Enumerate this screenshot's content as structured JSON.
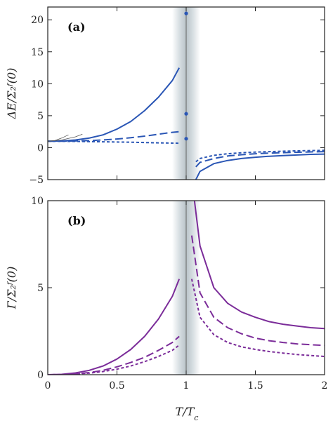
{
  "chart_data": [
    {
      "type": "line",
      "panel_label": "(a)",
      "xlabel": "",
      "ylabel": "ΔE/Σ₂ᶠ(0)",
      "xlim": [
        0,
        2
      ],
      "ylim": [
        -5,
        22
      ],
      "xticks": [
        0,
        0.5,
        1,
        1.5,
        2
      ],
      "xtick_labels": [
        "",
        "",
        "",
        "",
        ""
      ],
      "yticks": [
        -5,
        0,
        5,
        10,
        15,
        20
      ],
      "ytick_labels": [
        "−5",
        "0",
        "5",
        "10",
        "15",
        "20"
      ],
      "critical_x": 1,
      "color": "#2a56b5",
      "series": [
        {
          "style": "solid",
          "segments": [
            {
              "x": [
                0,
                0.1,
                0.2,
                0.3,
                0.4,
                0.5,
                0.6,
                0.7,
                0.8,
                0.9,
                0.95
              ],
              "y": [
                1,
                1.05,
                1.2,
                1.5,
                2.0,
                2.9,
                4.1,
                5.8,
                7.9,
                10.5,
                12.5
              ]
            },
            {
              "x": [
                1.07,
                1.1,
                1.2,
                1.3,
                1.4,
                1.5,
                1.6,
                1.7,
                1.8,
                1.9,
                2.0
              ],
              "y": [
                -5,
                -3.7,
                -2.5,
                -2.0,
                -1.7,
                -1.5,
                -1.35,
                -1.25,
                -1.15,
                -1.05,
                -1.0
              ]
            }
          ]
        },
        {
          "style": "dashed",
          "segments": [
            {
              "x": [
                0,
                0.1,
                0.2,
                0.3,
                0.4,
                0.5,
                0.6,
                0.7,
                0.8,
                0.9,
                0.95
              ],
              "y": [
                1,
                1.01,
                1.05,
                1.1,
                1.2,
                1.35,
                1.55,
                1.8,
                2.1,
                2.4,
                2.5
              ]
            },
            {
              "x": [
                1.07,
                1.1,
                1.2,
                1.3,
                1.4,
                1.5,
                1.6,
                1.7,
                1.8,
                1.9,
                2.0
              ],
              "y": [
                -3.0,
                -2.3,
                -1.7,
                -1.3,
                -1.1,
                -0.95,
                -0.85,
                -0.78,
                -0.72,
                -0.67,
                -0.62
              ]
            }
          ]
        },
        {
          "style": "dotted",
          "segments": [
            {
              "x": [
                0,
                0.2,
                0.4,
                0.6,
                0.8,
                0.95
              ],
              "y": [
                1,
                0.98,
                0.92,
                0.85,
                0.75,
                0.7
              ]
            },
            {
              "x": [
                1.07,
                1.1,
                1.2,
                1.3,
                1.4,
                1.5,
                1.6,
                1.7,
                1.8,
                1.9,
                2.0
              ],
              "y": [
                -2.2,
                -1.7,
                -1.2,
                -0.95,
                -0.8,
                -0.7,
                -0.62,
                -0.56,
                -0.5,
                -0.46,
                -0.42
              ]
            }
          ]
        },
        {
          "style": "thin",
          "segments": [
            {
              "x": [
                0,
                0.05,
                0.1,
                0.15
              ],
              "y": [
                1,
                1.1,
                1.5,
                2.0
              ]
            },
            {
              "x": [
                0,
                0.1,
                0.2,
                0.25
              ],
              "y": [
                1,
                1.2,
                1.7,
                2.1
              ]
            }
          ]
        }
      ],
      "points": [
        {
          "x": 1.0,
          "y": 21.0
        },
        {
          "x": 1.0,
          "y": 5.3
        },
        {
          "x": 1.0,
          "y": 1.4
        }
      ]
    },
    {
      "type": "line",
      "panel_label": "(b)",
      "xlabel": "T/T_c",
      "ylabel": "Γ/Σ₂ᶠ(0)",
      "xlim": [
        0,
        2
      ],
      "ylim": [
        0,
        10
      ],
      "xticks": [
        0,
        0.5,
        1,
        1.5,
        2
      ],
      "xtick_labels": [
        "0",
        "0.5",
        "1",
        "1.5",
        "2"
      ],
      "yticks": [
        0,
        5,
        10
      ],
      "ytick_labels": [
        "0",
        "5",
        "10"
      ],
      "critical_x": 1,
      "color": "#7b2c99",
      "series": [
        {
          "style": "solid",
          "segments": [
            {
              "x": [
                0,
                0.1,
                0.2,
                0.3,
                0.4,
                0.5,
                0.6,
                0.7,
                0.8,
                0.9,
                0.95
              ],
              "y": [
                0,
                0.02,
                0.1,
                0.25,
                0.5,
                0.9,
                1.45,
                2.2,
                3.2,
                4.5,
                5.5
              ]
            },
            {
              "x": [
                1.06,
                1.1,
                1.2,
                1.3,
                1.4,
                1.5,
                1.6,
                1.7,
                1.8,
                1.9,
                2.0
              ],
              "y": [
                10,
                7.4,
                5.0,
                4.1,
                3.6,
                3.3,
                3.05,
                2.9,
                2.8,
                2.7,
                2.65
              ]
            }
          ]
        },
        {
          "style": "dashed",
          "segments": [
            {
              "x": [
                0,
                0.1,
                0.2,
                0.3,
                0.4,
                0.5,
                0.6,
                0.7,
                0.8,
                0.9,
                0.95
              ],
              "y": [
                0,
                0.01,
                0.05,
                0.12,
                0.25,
                0.45,
                0.7,
                1.0,
                1.4,
                1.85,
                2.2
              ]
            },
            {
              "x": [
                1.04,
                1.1,
                1.2,
                1.3,
                1.4,
                1.5,
                1.6,
                1.7,
                1.8,
                1.9,
                2.0
              ],
              "y": [
                8.0,
                4.7,
                3.3,
                2.7,
                2.35,
                2.1,
                1.95,
                1.85,
                1.77,
                1.72,
                1.68
              ]
            }
          ]
        },
        {
          "style": "dotted",
          "segments": [
            {
              "x": [
                0,
                0.1,
                0.2,
                0.3,
                0.4,
                0.5,
                0.6,
                0.7,
                0.8,
                0.9,
                0.95
              ],
              "y": [
                0,
                0.01,
                0.04,
                0.09,
                0.18,
                0.32,
                0.5,
                0.75,
                1.05,
                1.4,
                1.7
              ]
            },
            {
              "x": [
                1.04,
                1.1,
                1.2,
                1.3,
                1.4,
                1.5,
                1.6,
                1.7,
                1.8,
                1.9,
                2.0
              ],
              "y": [
                5.5,
                3.3,
                2.3,
                1.85,
                1.6,
                1.45,
                1.33,
                1.24,
                1.16,
                1.1,
                1.05
              ]
            }
          ]
        }
      ],
      "points": []
    }
  ]
}
